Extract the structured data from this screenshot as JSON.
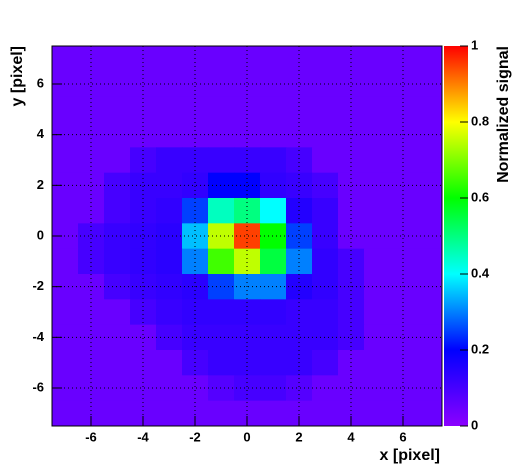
{
  "chart_data": {
    "type": "heatmap",
    "x_label": "x [pixel]",
    "y_label": "y [pixel]",
    "z_label": "Normalized signal",
    "xlim": [
      -7.5,
      7.5
    ],
    "ylim": [
      -7.5,
      7.5
    ],
    "zlim": [
      0,
      1
    ],
    "xticks": [
      -6,
      -4,
      -2,
      0,
      2,
      4,
      6
    ],
    "yticks": [
      -6,
      -4,
      -2,
      0,
      2,
      4,
      6
    ],
    "zticks": [
      0,
      0.2,
      0.4,
      0.6,
      0.8,
      1
    ],
    "grid": true,
    "colormap": [
      "#8c00ff",
      "#0000ff",
      "#00ffff",
      "#00ff00",
      "#ffff00",
      "#ff0000"
    ],
    "x": [
      -7,
      -6,
      -5,
      -4,
      -3,
      -2,
      -1,
      0,
      1,
      2,
      3,
      4,
      5,
      6,
      7
    ],
    "y": [
      7,
      6,
      5,
      4,
      3,
      2,
      1,
      0,
      -1,
      -2,
      -3,
      -4,
      -5,
      -6,
      -7
    ],
    "z": [
      [
        0.05,
        0.05,
        0.05,
        0.05,
        0.05,
        0.05,
        0.05,
        0.05,
        0.05,
        0.05,
        0.05,
        0.05,
        0.05,
        0.05,
        0.05
      ],
      [
        0.05,
        0.05,
        0.05,
        0.05,
        0.05,
        0.05,
        0.05,
        0.05,
        0.05,
        0.05,
        0.05,
        0.05,
        0.05,
        0.05,
        0.05
      ],
      [
        0.05,
        0.05,
        0.05,
        0.05,
        0.05,
        0.05,
        0.05,
        0.05,
        0.05,
        0.05,
        0.05,
        0.05,
        0.05,
        0.05,
        0.05
      ],
      [
        0.05,
        0.05,
        0.05,
        0.05,
        0.05,
        0.05,
        0.05,
        0.05,
        0.05,
        0.05,
        0.05,
        0.05,
        0.05,
        0.05,
        0.05
      ],
      [
        0.05,
        0.05,
        0.05,
        0.1,
        0.12,
        0.12,
        0.12,
        0.12,
        0.12,
        0.1,
        0.05,
        0.05,
        0.05,
        0.05,
        0.05
      ],
      [
        0.05,
        0.05,
        0.1,
        0.12,
        0.12,
        0.13,
        0.2,
        0.2,
        0.13,
        0.12,
        0.1,
        0.05,
        0.05,
        0.05,
        0.05
      ],
      [
        0.05,
        0.05,
        0.1,
        0.12,
        0.13,
        0.25,
        0.45,
        0.5,
        0.4,
        0.15,
        0.12,
        0.05,
        0.05,
        0.05,
        0.05
      ],
      [
        0.05,
        0.1,
        0.12,
        0.13,
        0.14,
        0.35,
        0.75,
        0.95,
        0.6,
        0.25,
        0.12,
        0.05,
        0.05,
        0.05,
        0.05
      ],
      [
        0.05,
        0.1,
        0.12,
        0.13,
        0.14,
        0.3,
        0.65,
        0.75,
        0.55,
        0.3,
        0.13,
        0.1,
        0.05,
        0.05,
        0.05
      ],
      [
        0.05,
        0.05,
        0.1,
        0.12,
        0.13,
        0.14,
        0.25,
        0.3,
        0.3,
        0.15,
        0.13,
        0.1,
        0.05,
        0.05,
        0.05
      ],
      [
        0.05,
        0.05,
        0.05,
        0.1,
        0.12,
        0.13,
        0.13,
        0.13,
        0.13,
        0.12,
        0.12,
        0.1,
        0.05,
        0.05,
        0.05
      ],
      [
        0.05,
        0.05,
        0.05,
        0.05,
        0.1,
        0.12,
        0.12,
        0.12,
        0.12,
        0.12,
        0.12,
        0.1,
        0.05,
        0.05,
        0.05
      ],
      [
        0.05,
        0.05,
        0.05,
        0.05,
        0.05,
        0.1,
        0.12,
        0.12,
        0.12,
        0.12,
        0.1,
        0.05,
        0.05,
        0.05,
        0.05
      ],
      [
        0.05,
        0.05,
        0.05,
        0.05,
        0.05,
        0.05,
        0.08,
        0.1,
        0.1,
        0.08,
        0.05,
        0.05,
        0.05,
        0.05,
        0.05
      ],
      [
        0.05,
        0.05,
        0.05,
        0.05,
        0.05,
        0.05,
        0.05,
        0.05,
        0.05,
        0.05,
        0.05,
        0.05,
        0.05,
        0.05,
        0.05
      ]
    ]
  }
}
